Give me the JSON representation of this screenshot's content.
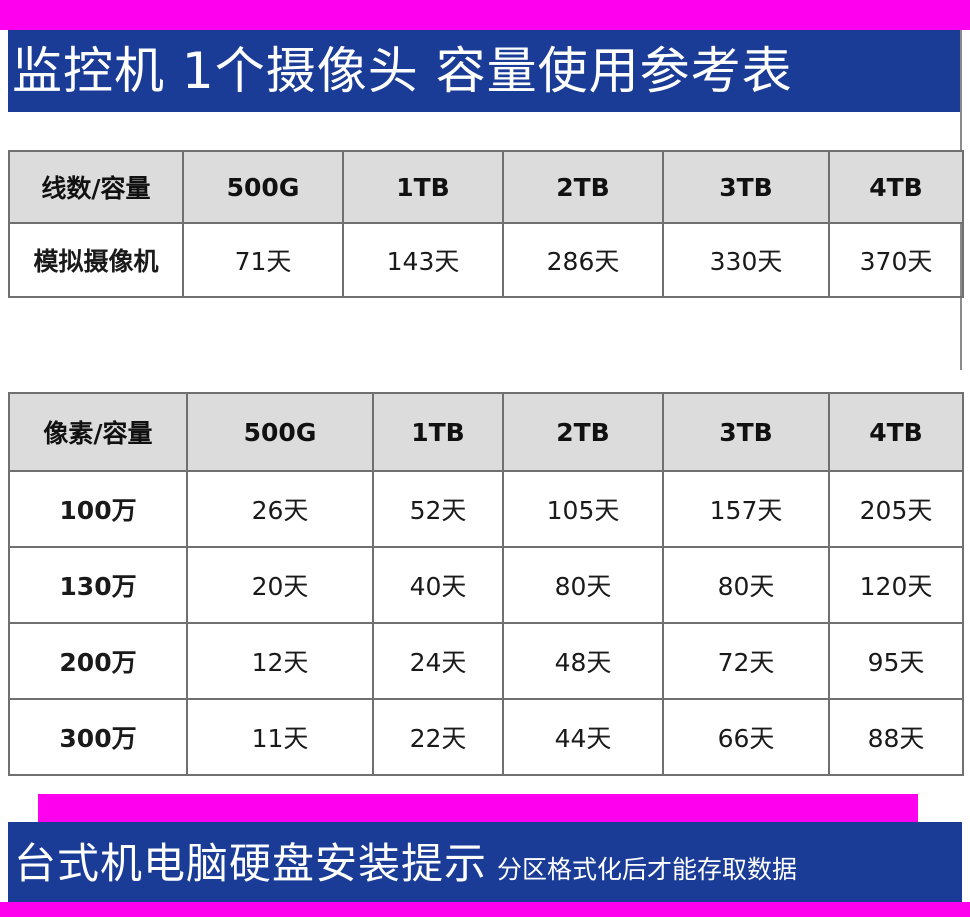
{
  "title": "监控机  1个摄像头  容量使用参考表",
  "table1": {
    "headers": [
      "线数/容量",
      "500G",
      "1TB",
      "2TB",
      "3TB",
      "4TB"
    ],
    "rows": [
      [
        "模拟摄像机",
        "71天",
        "143天",
        "286天",
        "330天",
        "370天"
      ]
    ]
  },
  "table2": {
    "headers": [
      "像素/容量",
      "500G",
      "1TB",
      "2TB",
      "3TB",
      "4TB"
    ],
    "rows": [
      [
        "100万",
        "26天",
        "52天",
        "105天",
        "157天",
        "205天"
      ],
      [
        "130万",
        "20天",
        "40天",
        "80天",
        "80天",
        "120天"
      ],
      [
        "200万",
        "12天",
        "24天",
        "48天",
        "72天",
        "95天"
      ],
      [
        "300万",
        "11天",
        "22天",
        "44天",
        "66天",
        "88天"
      ]
    ]
  },
  "footer": {
    "main": "台式机电脑硬盘安装提示",
    "sub": "分区格式化后才能存取数据"
  },
  "colors": {
    "banner_blue": "#1a3c97",
    "accent_magenta": "#ff00ee",
    "header_gray": "#dcdcdc"
  }
}
